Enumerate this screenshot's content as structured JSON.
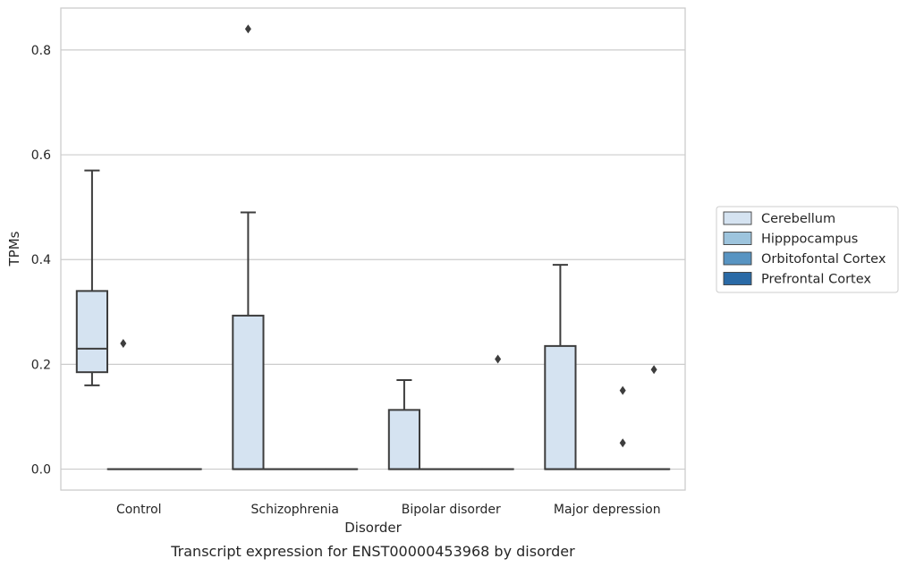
{
  "chart_data": {
    "type": "box",
    "title": "",
    "caption": "Transcript expression for ENST00000453968 by disorder",
    "xlabel": "Disorder",
    "ylabel": "TPMs",
    "ylim": [
      -0.04,
      0.88
    ],
    "yticks": [
      0.0,
      0.2,
      0.4,
      0.6,
      0.8
    ],
    "ytick_labels": [
      "0.0",
      "0.2",
      "0.4",
      "0.6",
      "0.8"
    ],
    "grid": true,
    "legend_position": "right",
    "categories": [
      "Control",
      "Schizophrenia",
      "Bipolar disorder",
      "Major depression"
    ],
    "series": [
      {
        "name": "Cerebellum",
        "color": "#d5e3f1",
        "boxes": [
          {
            "q1": 0.185,
            "median": 0.23,
            "q3": 0.34,
            "whislo": 0.16,
            "whishi": 0.57,
            "fliers": []
          },
          {
            "q1": 0.0,
            "median": 0.0,
            "q3": 0.293,
            "whislo": 0.0,
            "whishi": 0.49,
            "fliers": [
              0.84
            ]
          },
          {
            "q1": 0.0,
            "median": 0.0,
            "q3": 0.113,
            "whislo": 0.0,
            "whishi": 0.17,
            "fliers": []
          },
          {
            "q1": 0.0,
            "median": 0.0,
            "q3": 0.235,
            "whislo": 0.0,
            "whishi": 0.39,
            "fliers": []
          }
        ]
      },
      {
        "name": "Hipppocampus",
        "color": "#9dc4dd",
        "boxes": [
          {
            "q1": 0.0,
            "median": 0.0,
            "q3": 0.0,
            "whislo": 0.0,
            "whishi": 0.0,
            "fliers": [
              0.24
            ]
          },
          {
            "q1": 0.0,
            "median": 0.0,
            "q3": 0.0,
            "whislo": 0.0,
            "whishi": 0.0,
            "fliers": []
          },
          {
            "q1": 0.0,
            "median": 0.0,
            "q3": 0.0,
            "whislo": 0.0,
            "whishi": 0.0,
            "fliers": []
          },
          {
            "q1": 0.0,
            "median": 0.0,
            "q3": 0.0,
            "whislo": 0.0,
            "whishi": 0.0,
            "fliers": []
          }
        ]
      },
      {
        "name": "Orbitofontal Cortex",
        "color": "#5894c2",
        "boxes": [
          {
            "q1": 0.0,
            "median": 0.0,
            "q3": 0.0,
            "whislo": 0.0,
            "whishi": 0.0,
            "fliers": []
          },
          {
            "q1": 0.0,
            "median": 0.0,
            "q3": 0.0,
            "whislo": 0.0,
            "whishi": 0.0,
            "fliers": []
          },
          {
            "q1": 0.0,
            "median": 0.0,
            "q3": 0.0,
            "whislo": 0.0,
            "whishi": 0.0,
            "fliers": []
          },
          {
            "q1": 0.0,
            "median": 0.0,
            "q3": 0.0,
            "whislo": 0.0,
            "whishi": 0.0,
            "fliers": [
              0.05,
              0.15
            ]
          }
        ]
      },
      {
        "name": "Prefrontal Cortex",
        "color": "#2a6aa6",
        "boxes": [
          {
            "q1": 0.0,
            "median": 0.0,
            "q3": 0.0,
            "whislo": 0.0,
            "whishi": 0.0,
            "fliers": []
          },
          {
            "q1": 0.0,
            "median": 0.0,
            "q3": 0.0,
            "whislo": 0.0,
            "whishi": 0.0,
            "fliers": []
          },
          {
            "q1": 0.0,
            "median": 0.0,
            "q3": 0.0,
            "whislo": 0.0,
            "whishi": 0.0,
            "fliers": [
              0.21
            ]
          },
          {
            "q1": 0.0,
            "median": 0.0,
            "q3": 0.0,
            "whislo": 0.0,
            "whishi": 0.0,
            "fliers": [
              0.19
            ]
          }
        ]
      }
    ],
    "style": {
      "grid_color": "#cccccc",
      "frame_color": "#cccccc",
      "line_color": "#3d3d3d",
      "flier_color": "#3d3d3d"
    }
  }
}
